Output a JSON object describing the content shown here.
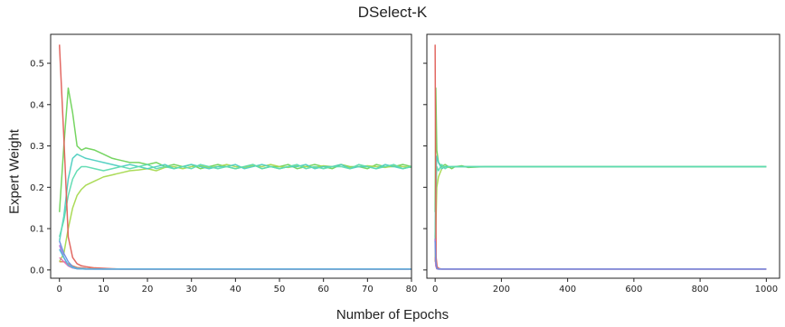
{
  "chart_data": {
    "type": "line",
    "title": "DSelect-K",
    "xlabel": "Number of Epochs",
    "ylabel": "Expert Weight",
    "grid": false,
    "legend": "none",
    "panels": [
      {
        "xlim": [
          -2,
          80
        ],
        "ylim": [
          -0.02,
          0.57
        ],
        "xticks": [
          0,
          10,
          20,
          30,
          40,
          50,
          60,
          70,
          80
        ],
        "yticks": [
          0.0,
          0.1,
          0.2,
          0.3,
          0.4,
          0.5
        ],
        "ytick_labels": [
          "0.0",
          "0.1",
          "0.2",
          "0.3",
          "0.4",
          "0.5"
        ],
        "series": [
          {
            "color": "#6fd35a",
            "x": [
              0,
              1,
              2,
              3,
              4,
              5,
              6,
              8,
              10,
              12,
              14,
              16,
              18,
              20,
              22,
              24,
              26,
              28,
              30,
              32,
              34,
              36,
              38,
              40,
              42,
              44,
              46,
              48,
              50,
              52,
              54,
              56,
              58,
              60,
              62,
              64,
              66,
              68,
              70,
              72,
              74,
              76,
              78,
              80
            ],
            "y": [
              0.14,
              0.3,
              0.44,
              0.38,
              0.3,
              0.29,
              0.295,
              0.29,
              0.28,
              0.27,
              0.265,
              0.26,
              0.26,
              0.255,
              0.26,
              0.25,
              0.255,
              0.25,
              0.255,
              0.245,
              0.25,
              0.255,
              0.25,
              0.245,
              0.25,
              0.255,
              0.245,
              0.25,
              0.25,
              0.255,
              0.245,
              0.25,
              0.255,
              0.25,
              0.245,
              0.255,
              0.25,
              0.25,
              0.245,
              0.255,
              0.25,
              0.25,
              0.255,
              0.25
            ]
          },
          {
            "color": "#a6d94f",
            "x": [
              0,
              1,
              2,
              3,
              4,
              5,
              6,
              8,
              10,
              12,
              14,
              16,
              18,
              20,
              22,
              24,
              26,
              28,
              30,
              32,
              34,
              36,
              38,
              40,
              42,
              44,
              46,
              48,
              50,
              52,
              54,
              56,
              58,
              60,
              62,
              64,
              66,
              68,
              70,
              72,
              74,
              76,
              78,
              80
            ],
            "y": [
              0.02,
              0.04,
              0.1,
              0.15,
              0.18,
              0.195,
              0.205,
              0.215,
              0.225,
              0.23,
              0.235,
              0.24,
              0.242,
              0.245,
              0.24,
              0.248,
              0.25,
              0.245,
              0.25,
              0.252,
              0.248,
              0.25,
              0.255,
              0.25,
              0.248,
              0.252,
              0.25,
              0.255,
              0.25,
              0.248,
              0.252,
              0.25,
              0.248,
              0.252,
              0.25,
              0.255,
              0.248,
              0.25,
              0.252,
              0.25,
              0.248,
              0.252,
              0.25,
              0.248
            ]
          },
          {
            "color": "#4ecfc0",
            "x": [
              0,
              1,
              2,
              3,
              4,
              5,
              6,
              8,
              10,
              12,
              14,
              16,
              18,
              20,
              22,
              24,
              26,
              28,
              30,
              32,
              34,
              36,
              38,
              40,
              42,
              44,
              46,
              48,
              50,
              52,
              54,
              56,
              58,
              60,
              62,
              64,
              66,
              68,
              70,
              72,
              74,
              76,
              78,
              80
            ],
            "y": [
              0.07,
              0.13,
              0.22,
              0.27,
              0.28,
              0.275,
              0.27,
              0.265,
              0.26,
              0.255,
              0.25,
              0.255,
              0.25,
              0.245,
              0.25,
              0.255,
              0.245,
              0.25,
              0.255,
              0.25,
              0.245,
              0.25,
              0.25,
              0.255,
              0.245,
              0.25,
              0.255,
              0.25,
              0.245,
              0.25,
              0.25,
              0.255,
              0.245,
              0.25,
              0.25,
              0.255,
              0.245,
              0.25,
              0.25,
              0.245,
              0.255,
              0.25,
              0.245,
              0.25
            ]
          },
          {
            "color": "#5ddbb0",
            "x": [
              0,
              1,
              2,
              3,
              4,
              5,
              6,
              8,
              10,
              12,
              14,
              16,
              18,
              20,
              22,
              24,
              26,
              28,
              30,
              32,
              34,
              36,
              38,
              40,
              42,
              44,
              46,
              48,
              50,
              52,
              54,
              56,
              58,
              60,
              62,
              64,
              66,
              68,
              70,
              72,
              74,
              76,
              78,
              80
            ],
            "y": [
              0.08,
              0.12,
              0.18,
              0.22,
              0.24,
              0.25,
              0.25,
              0.245,
              0.24,
              0.245,
              0.25,
              0.245,
              0.25,
              0.255,
              0.245,
              0.25,
              0.245,
              0.25,
              0.245,
              0.255,
              0.25,
              0.245,
              0.25,
              0.245,
              0.25,
              0.255,
              0.245,
              0.25,
              0.245,
              0.25,
              0.255,
              0.245,
              0.25,
              0.245,
              0.25,
              0.25,
              0.245,
              0.255,
              0.25,
              0.245,
              0.25,
              0.255,
              0.245,
              0.25
            ]
          },
          {
            "color": "#e0605a",
            "x": [
              0,
              1,
              2,
              3,
              4,
              5,
              6,
              8,
              10,
              12,
              14,
              16,
              20,
              30,
              40,
              50,
              60,
              70,
              80
            ],
            "y": [
              0.545,
              0.32,
              0.08,
              0.03,
              0.015,
              0.01,
              0.008,
              0.005,
              0.004,
              0.003,
              0.002,
              0.002,
              0.002,
              0.002,
              0.002,
              0.002,
              0.002,
              0.002,
              0.002
            ]
          },
          {
            "color": "#e08850",
            "x": [
              0,
              1,
              2,
              3,
              4,
              6,
              8,
              10,
              20,
              40,
              60,
              80
            ],
            "y": [
              0.02,
              0.02,
              0.015,
              0.01,
              0.006,
              0.004,
              0.003,
              0.002,
              0.002,
              0.002,
              0.002,
              0.002
            ]
          },
          {
            "color": "#b070d8",
            "x": [
              0,
              1,
              2,
              3,
              4,
              6,
              8,
              10,
              20,
              40,
              60,
              80
            ],
            "y": [
              0.06,
              0.03,
              0.01,
              0.005,
              0.003,
              0.002,
              0.002,
              0.002,
              0.002,
              0.002,
              0.002,
              0.002
            ]
          },
          {
            "color": "#6a8fe0",
            "x": [
              0,
              1,
              2,
              3,
              4,
              6,
              8,
              10,
              20,
              40,
              60,
              80
            ],
            "y": [
              0.07,
              0.04,
              0.02,
              0.008,
              0.004,
              0.003,
              0.002,
              0.002,
              0.002,
              0.002,
              0.002,
              0.002
            ]
          },
          {
            "color": "#e070b0",
            "x": [
              0,
              1,
              2,
              3,
              4,
              6,
              8,
              10,
              20,
              40,
              60,
              80
            ],
            "y": [
              0.03,
              0.02,
              0.01,
              0.005,
              0.003,
              0.002,
              0.002,
              0.002,
              0.002,
              0.002,
              0.002,
              0.002
            ]
          },
          {
            "color": "#50b8e0",
            "x": [
              0,
              1,
              2,
              3,
              4,
              6,
              8,
              10,
              20,
              40,
              60,
              80
            ],
            "y": [
              0.05,
              0.03,
              0.012,
              0.006,
              0.003,
              0.002,
              0.002,
              0.002,
              0.002,
              0.002,
              0.002,
              0.002
            ]
          }
        ]
      },
      {
        "xlim": [
          -25,
          1040
        ],
        "ylim": [
          -0.02,
          0.57
        ],
        "xticks": [
          0,
          200,
          400,
          600,
          800,
          1000
        ],
        "yticks": [
          0.0,
          0.1,
          0.2,
          0.3,
          0.4,
          0.5
        ],
        "ytick_labels": [
          "",
          "",
          "",
          "",
          "",
          ""
        ],
        "series": [
          {
            "color": "#6fd35a",
            "x": [
              0,
              2,
              5,
              10,
              20,
              30,
              40,
              50,
              60,
              80,
              100,
              150,
              200,
              300,
              400,
              500,
              600,
              700,
              800,
              900,
              1000
            ],
            "y": [
              0.14,
              0.44,
              0.29,
              0.26,
              0.25,
              0.255,
              0.25,
              0.245,
              0.25,
              0.252,
              0.248,
              0.25,
              0.25,
              0.25,
              0.25,
              0.25,
              0.25,
              0.25,
              0.25,
              0.25,
              0.25
            ]
          },
          {
            "color": "#a6d94f",
            "x": [
              0,
              2,
              5,
              10,
              20,
              30,
              40,
              50,
              60,
              80,
              100,
              150,
              200,
              300,
              400,
              500,
              600,
              700,
              800,
              900,
              1000
            ],
            "y": [
              0.02,
              0.1,
              0.2,
              0.225,
              0.245,
              0.25,
              0.248,
              0.25,
              0.25,
              0.25,
              0.25,
              0.25,
              0.25,
              0.25,
              0.25,
              0.25,
              0.25,
              0.25,
              0.25,
              0.25,
              0.25
            ]
          },
          {
            "color": "#4ecfc0",
            "x": [
              0,
              2,
              5,
              10,
              20,
              30,
              40,
              50,
              60,
              80,
              100,
              150,
              200,
              300,
              400,
              500,
              600,
              700,
              800,
              900,
              1000
            ],
            "y": [
              0.07,
              0.22,
              0.275,
              0.26,
              0.245,
              0.25,
              0.25,
              0.25,
              0.25,
              0.25,
              0.25,
              0.25,
              0.25,
              0.25,
              0.25,
              0.25,
              0.25,
              0.25,
              0.25,
              0.25,
              0.25
            ]
          },
          {
            "color": "#5ddbb0",
            "x": [
              0,
              2,
              5,
              10,
              20,
              30,
              40,
              50,
              60,
              80,
              100,
              150,
              200,
              300,
              400,
              500,
              600,
              700,
              800,
              900,
              1000
            ],
            "y": [
              0.08,
              0.18,
              0.25,
              0.24,
              0.255,
              0.245,
              0.25,
              0.25,
              0.25,
              0.25,
              0.25,
              0.25,
              0.25,
              0.25,
              0.25,
              0.25,
              0.25,
              0.25,
              0.25,
              0.25,
              0.25
            ]
          },
          {
            "color": "#e0605a",
            "x": [
              0,
              1,
              3,
              6,
              10,
              20,
              40,
              80,
              200,
              400,
              600,
              800,
              1000
            ],
            "y": [
              0.545,
              0.32,
              0.03,
              0.008,
              0.004,
              0.002,
              0.002,
              0.002,
              0.002,
              0.002,
              0.002,
              0.002,
              0.002
            ]
          },
          {
            "color": "#b070d8",
            "x": [
              0,
              2,
              5,
              10,
              20,
              40,
              100,
              200,
              400,
              600,
              800,
              1000
            ],
            "y": [
              0.075,
              0.01,
              0.003,
              0.002,
              0.002,
              0.002,
              0.002,
              0.002,
              0.002,
              0.002,
              0.002,
              0.002
            ]
          },
          {
            "color": "#e070b0",
            "x": [
              0,
              2,
              5,
              10,
              20,
              40,
              100,
              200,
              400,
              600,
              800,
              1000
            ],
            "y": [
              0.03,
              0.01,
              0.003,
              0.002,
              0.002,
              0.002,
              0.002,
              0.002,
              0.002,
              0.002,
              0.002,
              0.002
            ]
          },
          {
            "color": "#6a8fe0",
            "x": [
              0,
              2,
              5,
              10,
              20,
              40,
              100,
              200,
              400,
              600,
              800,
              1000
            ],
            "y": [
              0.07,
              0.02,
              0.004,
              0.002,
              0.002,
              0.002,
              0.002,
              0.002,
              0.002,
              0.002,
              0.002,
              0.002
            ]
          }
        ]
      }
    ]
  }
}
